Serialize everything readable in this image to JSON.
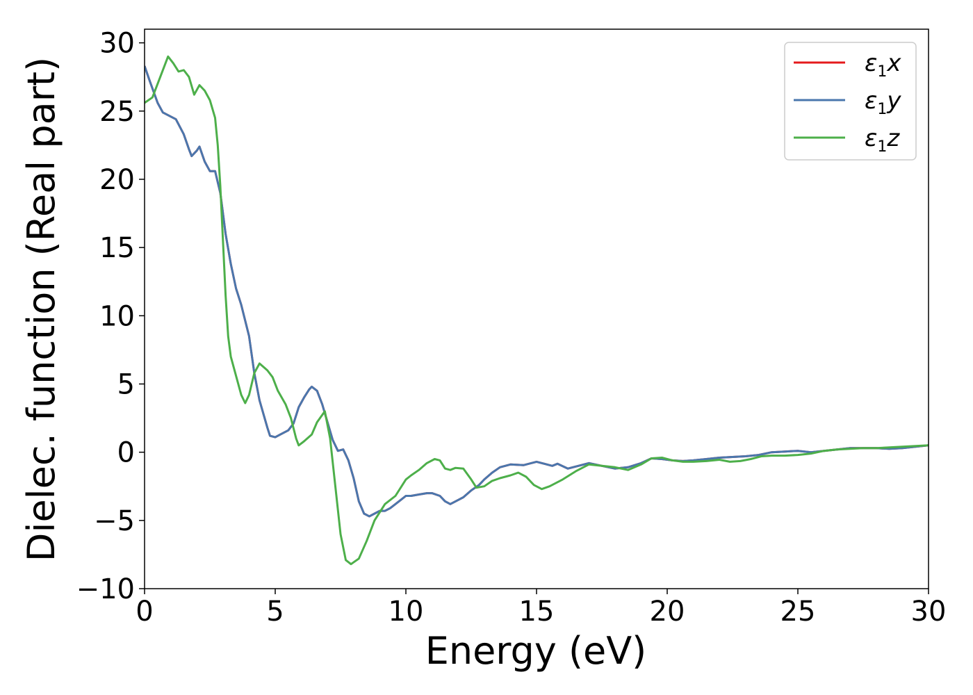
{
  "chart_data": {
    "type": "line",
    "title": "",
    "xlabel": "Energy (eV)",
    "ylabel": "Dielec. function (Real part)",
    "xlim": [
      0,
      30
    ],
    "ylim": [
      -10,
      31
    ],
    "xticks": [
      0,
      5,
      10,
      15,
      20,
      25,
      30
    ],
    "xtick_labels": [
      "0",
      "5",
      "10",
      "15",
      "20",
      "25",
      "30"
    ],
    "yticks": [
      -10,
      -5,
      0,
      5,
      10,
      15,
      20,
      25,
      30
    ],
    "ytick_labels": [
      "−10",
      "−5",
      "0",
      "5",
      "10",
      "15",
      "20",
      "25",
      "30"
    ],
    "grid": false,
    "legend_position": "top-right",
    "series": [
      {
        "name": "ε1x",
        "symbol": "ε",
        "subscript": "1",
        "suffix": "x",
        "color": "#e41a1c",
        "points": [
          [
            0,
            28.3
          ],
          [
            0.2,
            27.2
          ],
          [
            0.5,
            25.6
          ],
          [
            0.7,
            24.9
          ],
          [
            1.2,
            24.4
          ],
          [
            1.5,
            23.3
          ],
          [
            1.7,
            22.2
          ],
          [
            1.8,
            21.7
          ],
          [
            2,
            22.1
          ],
          [
            2.1,
            22.4
          ],
          [
            2.3,
            21.3
          ],
          [
            2.5,
            20.6
          ],
          [
            2.7,
            20.6
          ],
          [
            2.9,
            19.0
          ],
          [
            3.1,
            16.0
          ],
          [
            3.3,
            13.8
          ],
          [
            3.5,
            12.0
          ],
          [
            3.7,
            10.8
          ],
          [
            4,
            8.5
          ],
          [
            4.2,
            5.8
          ],
          [
            4.4,
            3.8
          ],
          [
            4.7,
            1.8
          ],
          [
            4.8,
            1.2
          ],
          [
            5,
            1.1
          ],
          [
            5.2,
            1.3
          ],
          [
            5.5,
            1.6
          ],
          [
            5.7,
            2.1
          ],
          [
            5.9,
            3.3
          ],
          [
            6.1,
            4.0
          ],
          [
            6.3,
            4.6
          ],
          [
            6.4,
            4.8
          ],
          [
            6.6,
            4.5
          ],
          [
            6.8,
            3.5
          ],
          [
            7,
            2.2
          ],
          [
            7.2,
            0.9
          ],
          [
            7.4,
            0.1
          ],
          [
            7.6,
            0.2
          ],
          [
            7.8,
            -0.6
          ],
          [
            8,
            -1.9
          ],
          [
            8.2,
            -3.6
          ],
          [
            8.4,
            -4.5
          ],
          [
            8.6,
            -4.7
          ],
          [
            8.8,
            -4.5
          ],
          [
            9,
            -4.3
          ],
          [
            9.2,
            -4.3
          ],
          [
            9.4,
            -4.1
          ],
          [
            9.6,
            -3.8
          ],
          [
            9.8,
            -3.5
          ],
          [
            10,
            -3.2
          ],
          [
            10.2,
            -3.2
          ],
          [
            10.5,
            -3.1
          ],
          [
            10.8,
            -3.0
          ],
          [
            11,
            -3.0
          ],
          [
            11.3,
            -3.2
          ],
          [
            11.5,
            -3.6
          ],
          [
            11.7,
            -3.8
          ],
          [
            12,
            -3.5
          ],
          [
            12.2,
            -3.3
          ],
          [
            12.5,
            -2.8
          ],
          [
            12.8,
            -2.4
          ],
          [
            13,
            -2.0
          ],
          [
            13.3,
            -1.5
          ],
          [
            13.6,
            -1.1
          ],
          [
            14,
            -0.9
          ],
          [
            14.5,
            -0.95
          ],
          [
            15,
            -0.7
          ],
          [
            15.3,
            -0.85
          ],
          [
            15.6,
            -1.0
          ],
          [
            15.8,
            -0.85
          ],
          [
            16.2,
            -1.2
          ],
          [
            16.6,
            -1.0
          ],
          [
            17,
            -0.8
          ],
          [
            17.5,
            -1.0
          ],
          [
            18,
            -1.2
          ],
          [
            18.5,
            -1.1
          ],
          [
            19,
            -0.8
          ],
          [
            19.4,
            -0.45
          ],
          [
            19.8,
            -0.5
          ],
          [
            20.2,
            -0.6
          ],
          [
            20.6,
            -0.65
          ],
          [
            21,
            -0.6
          ],
          [
            21.5,
            -0.5
          ],
          [
            22,
            -0.4
          ],
          [
            22.5,
            -0.35
          ],
          [
            23,
            -0.3
          ],
          [
            23.5,
            -0.2
          ],
          [
            24,
            0.0
          ],
          [
            24.5,
            0.05
          ],
          [
            25,
            0.1
          ],
          [
            25.5,
            0.0
          ],
          [
            26,
            0.1
          ],
          [
            26.5,
            0.2
          ],
          [
            27,
            0.3
          ],
          [
            27.5,
            0.3
          ],
          [
            28,
            0.3
          ],
          [
            28.5,
            0.25
          ],
          [
            29,
            0.3
          ],
          [
            29.5,
            0.4
          ],
          [
            30,
            0.5
          ]
        ]
      },
      {
        "name": "ε1y",
        "symbol": "ε",
        "subscript": "1",
        "suffix": "y",
        "color": "#4a77ad",
        "points": [
          [
            0,
            28.3
          ],
          [
            0.2,
            27.2
          ],
          [
            0.5,
            25.6
          ],
          [
            0.7,
            24.9
          ],
          [
            1.2,
            24.4
          ],
          [
            1.5,
            23.3
          ],
          [
            1.7,
            22.2
          ],
          [
            1.8,
            21.7
          ],
          [
            2,
            22.1
          ],
          [
            2.1,
            22.4
          ],
          [
            2.3,
            21.3
          ],
          [
            2.5,
            20.6
          ],
          [
            2.7,
            20.6
          ],
          [
            2.9,
            19.0
          ],
          [
            3.1,
            16.0
          ],
          [
            3.3,
            13.8
          ],
          [
            3.5,
            12.0
          ],
          [
            3.7,
            10.8
          ],
          [
            4,
            8.5
          ],
          [
            4.2,
            5.8
          ],
          [
            4.4,
            3.8
          ],
          [
            4.7,
            1.8
          ],
          [
            4.8,
            1.2
          ],
          [
            5,
            1.1
          ],
          [
            5.2,
            1.3
          ],
          [
            5.5,
            1.6
          ],
          [
            5.7,
            2.1
          ],
          [
            5.9,
            3.3
          ],
          [
            6.1,
            4.0
          ],
          [
            6.3,
            4.6
          ],
          [
            6.4,
            4.8
          ],
          [
            6.6,
            4.5
          ],
          [
            6.8,
            3.5
          ],
          [
            7,
            2.2
          ],
          [
            7.2,
            0.9
          ],
          [
            7.4,
            0.1
          ],
          [
            7.6,
            0.2
          ],
          [
            7.8,
            -0.6
          ],
          [
            8,
            -1.9
          ],
          [
            8.2,
            -3.6
          ],
          [
            8.4,
            -4.5
          ],
          [
            8.6,
            -4.7
          ],
          [
            8.8,
            -4.5
          ],
          [
            9,
            -4.3
          ],
          [
            9.2,
            -4.3
          ],
          [
            9.4,
            -4.1
          ],
          [
            9.6,
            -3.8
          ],
          [
            9.8,
            -3.5
          ],
          [
            10,
            -3.2
          ],
          [
            10.2,
            -3.2
          ],
          [
            10.5,
            -3.1
          ],
          [
            10.8,
            -3.0
          ],
          [
            11,
            -3.0
          ],
          [
            11.3,
            -3.2
          ],
          [
            11.5,
            -3.6
          ],
          [
            11.7,
            -3.8
          ],
          [
            12,
            -3.5
          ],
          [
            12.2,
            -3.3
          ],
          [
            12.5,
            -2.8
          ],
          [
            12.8,
            -2.4
          ],
          [
            13,
            -2.0
          ],
          [
            13.3,
            -1.5
          ],
          [
            13.6,
            -1.1
          ],
          [
            14,
            -0.9
          ],
          [
            14.5,
            -0.95
          ],
          [
            15,
            -0.7
          ],
          [
            15.3,
            -0.85
          ],
          [
            15.6,
            -1.0
          ],
          [
            15.8,
            -0.85
          ],
          [
            16.2,
            -1.2
          ],
          [
            16.6,
            -1.0
          ],
          [
            17,
            -0.8
          ],
          [
            17.5,
            -1.0
          ],
          [
            18,
            -1.2
          ],
          [
            18.5,
            -1.1
          ],
          [
            19,
            -0.8
          ],
          [
            19.4,
            -0.45
          ],
          [
            19.8,
            -0.5
          ],
          [
            20.2,
            -0.6
          ],
          [
            20.6,
            -0.65
          ],
          [
            21,
            -0.6
          ],
          [
            21.5,
            -0.5
          ],
          [
            22,
            -0.4
          ],
          [
            22.5,
            -0.35
          ],
          [
            23,
            -0.3
          ],
          [
            23.5,
            -0.2
          ],
          [
            24,
            0.0
          ],
          [
            24.5,
            0.05
          ],
          [
            25,
            0.1
          ],
          [
            25.5,
            0.0
          ],
          [
            26,
            0.1
          ],
          [
            26.5,
            0.2
          ],
          [
            27,
            0.3
          ],
          [
            27.5,
            0.3
          ],
          [
            28,
            0.3
          ],
          [
            28.5,
            0.25
          ],
          [
            29,
            0.3
          ],
          [
            29.5,
            0.4
          ],
          [
            30,
            0.5
          ]
        ]
      },
      {
        "name": "ε1z",
        "symbol": "ε",
        "subscript": "1",
        "suffix": "z",
        "color": "#4daf4a",
        "points": [
          [
            0,
            25.6
          ],
          [
            0.3,
            26.0
          ],
          [
            0.6,
            27.5
          ],
          [
            0.9,
            29.0
          ],
          [
            1.1,
            28.5
          ],
          [
            1.3,
            27.9
          ],
          [
            1.5,
            28.0
          ],
          [
            1.7,
            27.5
          ],
          [
            1.9,
            26.2
          ],
          [
            2.1,
            26.9
          ],
          [
            2.3,
            26.5
          ],
          [
            2.5,
            25.8
          ],
          [
            2.7,
            24.5
          ],
          [
            2.8,
            22.5
          ],
          [
            2.9,
            19.5
          ],
          [
            3.0,
            15.5
          ],
          [
            3.1,
            11.5
          ],
          [
            3.2,
            8.5
          ],
          [
            3.3,
            7.0
          ],
          [
            3.5,
            5.6
          ],
          [
            3.7,
            4.2
          ],
          [
            3.85,
            3.6
          ],
          [
            4.0,
            4.2
          ],
          [
            4.2,
            5.8
          ],
          [
            4.4,
            6.5
          ],
          [
            4.7,
            6.0
          ],
          [
            4.9,
            5.5
          ],
          [
            5.1,
            4.5
          ],
          [
            5.4,
            3.5
          ],
          [
            5.6,
            2.5
          ],
          [
            5.8,
            1.0
          ],
          [
            5.9,
            0.5
          ],
          [
            6.1,
            0.8
          ],
          [
            6.4,
            1.3
          ],
          [
            6.6,
            2.2
          ],
          [
            6.9,
            3.0
          ],
          [
            7.1,
            1.0
          ],
          [
            7.3,
            -2.5
          ],
          [
            7.5,
            -6.0
          ],
          [
            7.7,
            -7.9
          ],
          [
            7.9,
            -8.2
          ],
          [
            8.2,
            -7.8
          ],
          [
            8.5,
            -6.5
          ],
          [
            8.8,
            -5.0
          ],
          [
            9.2,
            -3.8
          ],
          [
            9.6,
            -3.2
          ],
          [
            10,
            -2.0
          ],
          [
            10.2,
            -1.7
          ],
          [
            10.5,
            -1.3
          ],
          [
            10.8,
            -0.8
          ],
          [
            11.1,
            -0.5
          ],
          [
            11.3,
            -0.6
          ],
          [
            11.5,
            -1.2
          ],
          [
            11.7,
            -1.3
          ],
          [
            11.9,
            -1.15
          ],
          [
            12.2,
            -1.2
          ],
          [
            12.5,
            -2.0
          ],
          [
            12.7,
            -2.6
          ],
          [
            13,
            -2.5
          ],
          [
            13.3,
            -2.1
          ],
          [
            13.6,
            -1.9
          ],
          [
            14,
            -1.7
          ],
          [
            14.3,
            -1.5
          ],
          [
            14.6,
            -1.8
          ],
          [
            14.9,
            -2.4
          ],
          [
            15.2,
            -2.7
          ],
          [
            15.5,
            -2.5
          ],
          [
            16,
            -2.0
          ],
          [
            16.5,
            -1.4
          ],
          [
            17,
            -0.9
          ],
          [
            17.5,
            -1.0
          ],
          [
            18,
            -1.1
          ],
          [
            18.5,
            -1.3
          ],
          [
            19,
            -0.9
          ],
          [
            19.4,
            -0.45
          ],
          [
            19.8,
            -0.4
          ],
          [
            20.2,
            -0.6
          ],
          [
            20.6,
            -0.7
          ],
          [
            21,
            -0.7
          ],
          [
            21.5,
            -0.65
          ],
          [
            22,
            -0.55
          ],
          [
            22.4,
            -0.7
          ],
          [
            22.8,
            -0.65
          ],
          [
            23.2,
            -0.5
          ],
          [
            23.6,
            -0.3
          ],
          [
            24,
            -0.25
          ],
          [
            24.5,
            -0.25
          ],
          [
            25,
            -0.2
          ],
          [
            25.5,
            -0.1
          ],
          [
            26,
            0.1
          ],
          [
            26.5,
            0.2
          ],
          [
            27,
            0.25
          ],
          [
            27.5,
            0.3
          ],
          [
            28,
            0.3
          ],
          [
            28.5,
            0.35
          ],
          [
            29,
            0.4
          ],
          [
            29.5,
            0.45
          ],
          [
            30,
            0.5
          ]
        ]
      }
    ]
  }
}
